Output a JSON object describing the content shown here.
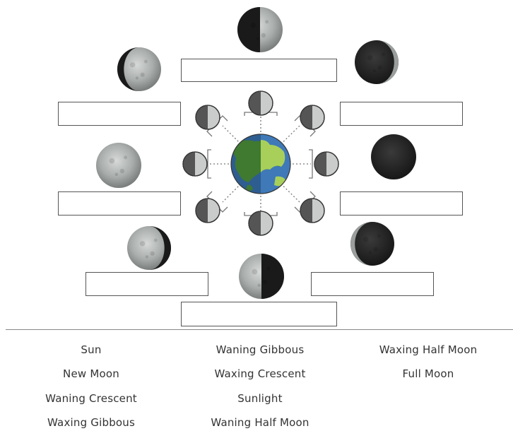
{
  "word_bank": [
    [
      "Sun",
      "Waning Gibbous",
      "Waxing Half Moon"
    ],
    [
      "New Moon",
      "Waxing Crescent",
      "Full Moon"
    ],
    [
      "Waning Crescent",
      "Sunlight",
      ""
    ],
    [
      "Waxing Gibbous",
      "Waning Half Moon",
      ""
    ]
  ],
  "diagram": {
    "moon_light_color": "#c9cccb",
    "moon_dark_color": "#2a2a2a",
    "ocean_color": "#3f79b8",
    "land_color": "#4c8a3a",
    "land_light_color": "#a8cf5a"
  }
}
